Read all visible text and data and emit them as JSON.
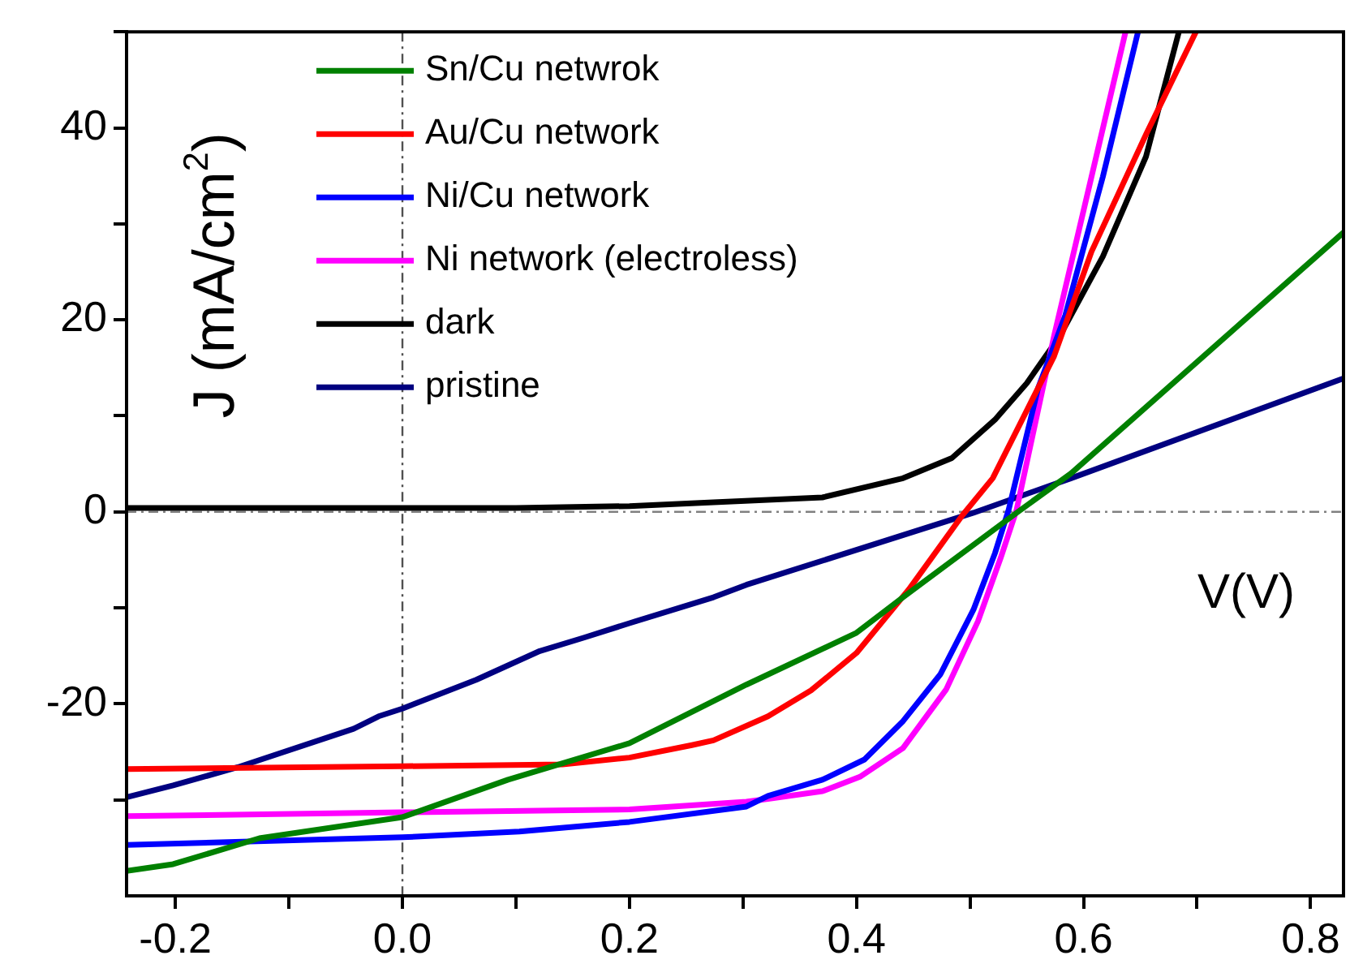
{
  "chart_data": {
    "type": "line",
    "xlabel": "V(V)",
    "ylabel": "J (mA/cm$^{2}$)",
    "xlim": [
      -0.243,
      0.829
    ],
    "ylim": [
      -40,
      50
    ],
    "xticks": [
      -0.2,
      {
        "value": -0.1,
        "label": null
      },
      {
        "value": 0,
        "label": "0.0"
      },
      {
        "value": 0.1,
        "label": null
      },
      0.2,
      {
        "value": 0.3,
        "label": null
      },
      0.4,
      {
        "value": 0.5,
        "label": null
      },
      0.6,
      {
        "value": 0.7,
        "label": null
      },
      0.8
    ],
    "yticks": [
      {
        "value": -30,
        "label": null
      },
      -20,
      {
        "value": -10,
        "label": null
      },
      0,
      {
        "value": 10,
        "label": null
      },
      20,
      {
        "value": 30,
        "label": null
      },
      40,
      {
        "value": 50,
        "label": null
      }
    ],
    "legend": "top left",
    "grid": false,
    "ref_lines": [
      {
        "axis": "y",
        "value": 0,
        "color": "#808080"
      },
      {
        "axis": "x",
        "value": 0,
        "color": "#505050"
      }
    ],
    "series": [
      {
        "name": "Sn/Cu netwrok",
        "color": "#008000",
        "x": [
          -0.243,
          -0.202,
          -0.126,
          0,
          0.093,
          0.2,
          0.303,
          0.4,
          0.441,
          0.541,
          0.589,
          0.829
        ],
        "values": [
          -37.4,
          -36.7,
          -34,
          -31.8,
          -27.9,
          -24.1,
          -18,
          -12.6,
          -8.9,
          -0.1,
          4,
          29.1
        ]
      },
      {
        "name": "Au/Cu network",
        "color": "#ff0000",
        "x": [
          -0.243,
          0,
          0.141,
          0.2,
          0.255,
          0.274,
          0.322,
          0.36,
          0.4,
          0.446,
          0.493,
          0.52,
          0.574,
          0.607,
          0.655,
          0.699
        ],
        "values": [
          -26.8,
          -26.5,
          -26.3,
          -25.6,
          -24.3,
          -23.8,
          -21.3,
          -18.6,
          -14.7,
          -8.1,
          -0.4,
          3.5,
          16.2,
          27.1,
          39.3,
          50
        ]
      },
      {
        "name": "Ni/Cu network",
        "color": "#0000ff",
        "x": [
          -0.243,
          0,
          0.103,
          0.2,
          0.303,
          0.322,
          0.37,
          0.407,
          0.441,
          0.474,
          0.503,
          0.522,
          0.534,
          0.56,
          0.584,
          0.617,
          0.648
        ],
        "values": [
          -34.7,
          -33.9,
          -33.3,
          -32.3,
          -30.7,
          -29.6,
          -27.9,
          -25.8,
          -21.8,
          -16.9,
          -10.2,
          -4.3,
          0.2,
          12.9,
          20.5,
          34.9,
          50
        ]
      },
      {
        "name": "Ni network (electroless)",
        "color": "#ff00ff",
        "x": [
          -0.243,
          0,
          0.2,
          0.303,
          0.322,
          0.37,
          0.403,
          0.441,
          0.479,
          0.507,
          0.527,
          0.541,
          0.574,
          0.607,
          0.637
        ],
        "values": [
          -31.7,
          -31.3,
          -31,
          -30.2,
          -29.9,
          -29.1,
          -27.6,
          -24.6,
          -18.5,
          -11.4,
          -4.8,
          0.2,
          18.3,
          34.9,
          50
        ]
      },
      {
        "name": "dark",
        "color": "#000000",
        "x": [
          -0.243,
          0,
          0.1,
          0.2,
          0.274,
          0.37,
          0.441,
          0.484,
          0.522,
          0.55,
          0.579,
          0.617,
          0.655,
          0.684
        ],
        "values": [
          0.4,
          0.4,
          0.4,
          0.6,
          1,
          1.5,
          3.5,
          5.6,
          9.6,
          13.4,
          18.3,
          26.6,
          37,
          50
        ]
      },
      {
        "name": "pristine",
        "color": "#000080",
        "x": [
          -0.242,
          -0.202,
          -0.145,
          -0.043,
          -0.021,
          0,
          0.065,
          0.121,
          0.16,
          0.2,
          0.274,
          0.303,
          0.503,
          0.589,
          0.829
        ],
        "values": [
          -29.7,
          -28.5,
          -26.6,
          -22.6,
          -21.3,
          -20.5,
          -17.5,
          -14.5,
          -13.1,
          -11.6,
          -8.9,
          -7.6,
          -0.1,
          3.5,
          13.9
        ]
      }
    ]
  }
}
